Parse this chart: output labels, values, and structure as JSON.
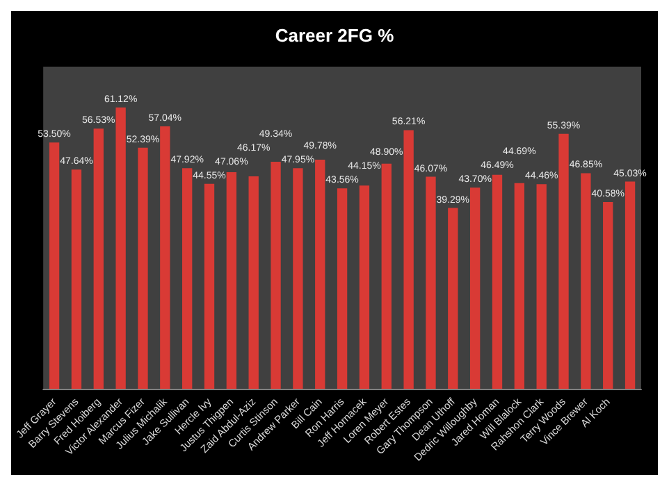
{
  "chart_data": {
    "type": "bar",
    "title": "Career 2FG %",
    "categories": [
      "Jeff Grayer",
      "Barry Stevens",
      "Fred Hoiberg",
      "Victor Alexander",
      "Marcus Fizer",
      "Julius Michalik",
      "Jake Sullivan",
      "Hercle Ivy",
      "Justus Thigpen",
      "Zaid Abdul-Aziz",
      "Curtis Stinson",
      "Andrew Parker",
      "Bill Cain",
      "Ron Harris",
      "Jeff Hornacek",
      "Loren Meyer",
      "Robert Estes",
      "Gary Thompson",
      "Dean Uthoff",
      "Dedric Willoughby",
      "Jared Homan",
      "Will Blalock",
      "Rahshon Clark",
      "Terry Woods",
      "Vince Brewer",
      "Al Koch",
      null
    ],
    "values": [
      53.5,
      47.64,
      56.53,
      61.12,
      52.39,
      57.04,
      47.92,
      44.55,
      47.06,
      46.17,
      49.34,
      47.95,
      49.78,
      43.56,
      44.15,
      48.9,
      56.21,
      46.07,
      39.29,
      43.7,
      46.49,
      44.69,
      44.46,
      55.39,
      46.85,
      40.58,
      45.03
    ],
    "value_labels": [
      "53.50%",
      "47.64%",
      "56.53%",
      "61.12%",
      "52.39%",
      "57.04%",
      "47.92%",
      "44.55%",
      "47.06%",
      "46.17%",
      "49.34%",
      "47.95%",
      "49.78%",
      "43.56%",
      "44.15%",
      "48.90%",
      "56.21%",
      "46.07%",
      "39.29%",
      "43.70%",
      "46.49%",
      "44.69%",
      "44.46%",
      "55.39%",
      "46.85%",
      "40.58%",
      "45.03%"
    ],
    "color": "#d93a35",
    "tick_labels": "x"
  }
}
